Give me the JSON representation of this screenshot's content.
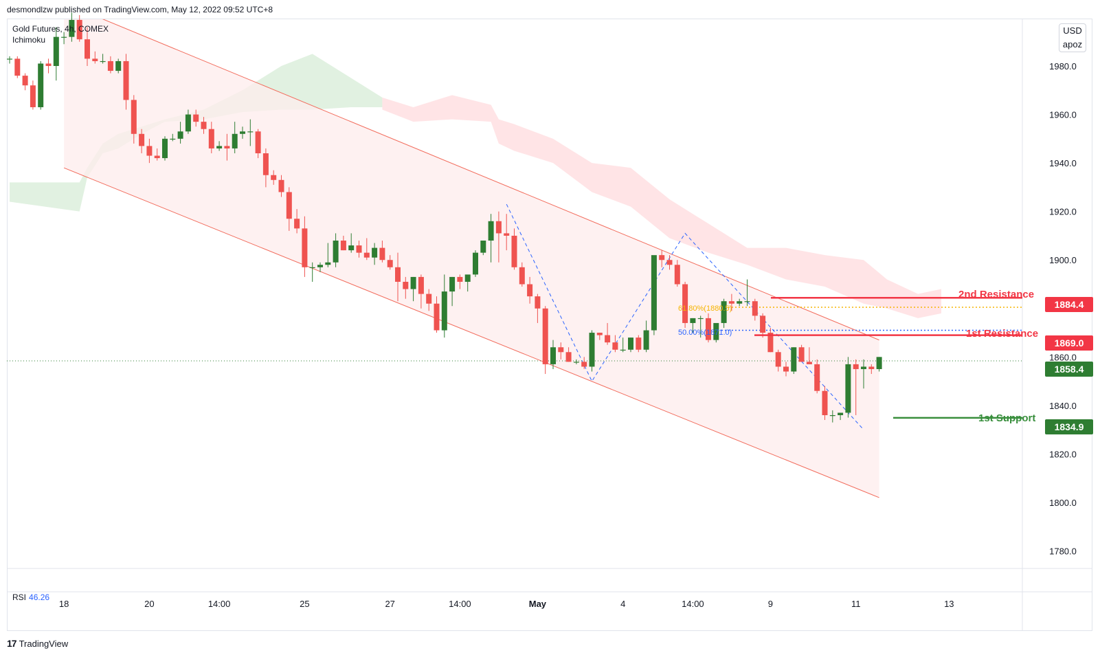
{
  "header": {
    "published_text": "desmondlzw published on TradingView.com, May 12, 2022 09:52 UTC+8"
  },
  "legend": {
    "symbol": "Gold Futures, 4h, COMEX",
    "indicator": "Ichimoku"
  },
  "scale": {
    "currency": "USD",
    "mode": "apoz"
  },
  "rsi": {
    "label": "RSI",
    "value": "46.26"
  },
  "footer": {
    "brand": "TradingView",
    "mark": "17"
  },
  "price_tags": {
    "second_resistance": "1884.4",
    "first_resistance": "1869.0",
    "current": "1858.4",
    "first_support": "1834.9"
  },
  "annotations": {
    "second_resistance": "2nd Resistance",
    "first_resistance": "1st Resistance",
    "first_support": "1st Support",
    "fib_618": "61.80%(1880.5)",
    "fib_50": "50.00%(1871.0)"
  },
  "colors": {
    "up": "#2e7d32",
    "down": "#ef5350",
    "resistance": "#f23645",
    "support": "#388e3c",
    "current": "#2e7d32",
    "fib618": "#f5b400",
    "fib50": "#2962ff",
    "channel": "#f26b5b",
    "cloud_bull": "#c8e6c9",
    "cloud_bear": "#ffcdd2"
  },
  "chart_data": {
    "type": "candlestick",
    "ylim": [
      1775,
      1995
    ],
    "y_ticks": [
      1780,
      1800,
      1820,
      1840,
      1860,
      1880,
      1900,
      1920,
      1940,
      1960,
      1980
    ],
    "x_ticks": [
      {
        "label": "18",
        "bar": 7
      },
      {
        "label": "20",
        "bar": 18
      },
      {
        "label": "14:00",
        "bar": 27
      },
      {
        "label": "25",
        "bar": 38
      },
      {
        "label": "27",
        "bar": 49
      },
      {
        "label": "14:00",
        "bar": 58
      },
      {
        "label": "May",
        "bar": 68,
        "bold": true
      },
      {
        "label": "4",
        "bar": 79
      },
      {
        "label": "14:00",
        "bar": 88
      },
      {
        "label": "9",
        "bar": 98
      },
      {
        "label": "11",
        "bar": 109
      },
      {
        "label": "13",
        "bar": 121
      }
    ],
    "candles": [
      [
        1983,
        1984,
        1981,
        1983
      ],
      [
        1983,
        1984,
        1975,
        1976
      ],
      [
        1976,
        1977,
        1970,
        1972
      ],
      [
        1972,
        1974,
        1962,
        1963
      ],
      [
        1963,
        1982,
        1962,
        1981
      ],
      [
        1981,
        1983,
        1977,
        1980
      ],
      [
        1980,
        1996,
        1974,
        1992
      ],
      [
        1992,
        1994,
        1989,
        1992
      ],
      [
        1992,
        2002,
        1990,
        1999
      ],
      [
        1999,
        2001,
        1990,
        1991
      ],
      [
        1991,
        1996,
        1980,
        1983
      ],
      [
        1983,
        1986,
        1981,
        1982
      ],
      [
        1982,
        1985,
        1981,
        1982
      ],
      [
        1982,
        1984,
        1977,
        1978
      ],
      [
        1978,
        1983,
        1977,
        1982
      ],
      [
        1982,
        1985,
        1962,
        1966
      ],
      [
        1966,
        1968,
        1948,
        1952
      ],
      [
        1952,
        1954,
        1944,
        1947
      ],
      [
        1947,
        1950,
        1940,
        1943
      ],
      [
        1943,
        1946,
        1941,
        1942
      ],
      [
        1942,
        1951,
        1941,
        1950
      ],
      [
        1950,
        1952,
        1949,
        1950
      ],
      [
        1950,
        1957,
        1948,
        1953
      ],
      [
        1953,
        1962,
        1952,
        1960
      ],
      [
        1960,
        1962,
        1955,
        1957
      ],
      [
        1957,
        1959,
        1952,
        1954
      ],
      [
        1954,
        1957,
        1944,
        1946
      ],
      [
        1946,
        1949,
        1945,
        1947
      ],
      [
        1947,
        1952,
        1941,
        1946
      ],
      [
        1946,
        1957,
        1944,
        1952
      ],
      [
        1952,
        1955,
        1950,
        1953
      ],
      [
        1953,
        1958,
        1947,
        1953
      ],
      [
        1953,
        1954,
        1942,
        1944
      ],
      [
        1944,
        1946,
        1930,
        1935
      ],
      [
        1935,
        1937,
        1931,
        1933
      ],
      [
        1933,
        1935,
        1926,
        1928
      ],
      [
        1928,
        1930,
        1912,
        1917
      ],
      [
        1917,
        1921,
        1911,
        1913
      ],
      [
        1913,
        1918,
        1893,
        1897
      ],
      [
        1897,
        1899,
        1891,
        1897
      ],
      [
        1897,
        1899,
        1895,
        1898
      ],
      [
        1898,
        1907,
        1897,
        1899
      ],
      [
        1899,
        1911,
        1897,
        1908
      ],
      [
        1908,
        1910,
        1904,
        1904
      ],
      [
        1904,
        1911,
        1903,
        1906
      ],
      [
        1906,
        1908,
        1901,
        1903
      ],
      [
        1903,
        1909,
        1900,
        1901
      ],
      [
        1901,
        1907,
        1898,
        1905
      ],
      [
        1905,
        1908,
        1899,
        1900
      ],
      [
        1900,
        1902,
        1896,
        1897
      ],
      [
        1897,
        1903,
        1883,
        1891
      ],
      [
        1891,
        1893,
        1884,
        1888
      ],
      [
        1888,
        1893,
        1883,
        1893
      ],
      [
        1893,
        1894,
        1880,
        1886
      ],
      [
        1886,
        1888,
        1879,
        1882
      ],
      [
        1882,
        1885,
        1870,
        1871
      ],
      [
        1871,
        1894,
        1868,
        1887
      ],
      [
        1887,
        1893,
        1881,
        1893
      ],
      [
        1893,
        1894,
        1888,
        1891
      ],
      [
        1891,
        1893,
        1887,
        1894
      ],
      [
        1894,
        1904,
        1893,
        1903
      ],
      [
        1903,
        1908,
        1902,
        1908
      ],
      [
        1908,
        1919,
        1899,
        1916
      ],
      [
        1916,
        1920,
        1899,
        1911
      ],
      [
        1911,
        1919,
        1904,
        1910
      ],
      [
        1910,
        1913,
        1896,
        1897
      ],
      [
        1897,
        1899,
        1889,
        1890
      ],
      [
        1890,
        1893,
        1882,
        1885
      ],
      [
        1885,
        1886,
        1874,
        1880
      ],
      [
        1880,
        1881,
        1853,
        1857
      ],
      [
        1857,
        1867,
        1855,
        1864
      ],
      [
        1864,
        1866,
        1859,
        1862
      ],
      [
        1862,
        1864,
        1858,
        1858
      ],
      [
        1858,
        1859,
        1857,
        1858
      ],
      [
        1858,
        1860,
        1855,
        1856
      ],
      [
        1856,
        1871,
        1854,
        1870
      ],
      [
        1870,
        1870,
        1867,
        1869
      ],
      [
        1869,
        1874,
        1865,
        1866
      ],
      [
        1866,
        1869,
        1862,
        1863
      ],
      [
        1863,
        1868,
        1862,
        1863
      ],
      [
        1863,
        1868,
        1862,
        1868
      ],
      [
        1868,
        1869,
        1862,
        1863
      ],
      [
        1863,
        1875,
        1862,
        1871
      ],
      [
        1871,
        1900,
        1869,
        1902
      ],
      [
        1902,
        1904,
        1897,
        1900
      ],
      [
        1900,
        1902,
        1896,
        1898
      ],
      [
        1898,
        1900,
        1889,
        1890
      ],
      [
        1890,
        1891,
        1872,
        1874
      ],
      [
        1874,
        1876,
        1870,
        1876
      ],
      [
        1876,
        1877,
        1868,
        1876
      ],
      [
        1876,
        1878,
        1866,
        1867
      ],
      [
        1867,
        1873,
        1866,
        1874
      ],
      [
        1874,
        1884,
        1872,
        1883
      ],
      [
        1883,
        1886,
        1879,
        1882
      ],
      [
        1882,
        1884,
        1881,
        1883
      ],
      [
        1883,
        1892,
        1881,
        1883
      ],
      [
        1883,
        1884,
        1875,
        1877
      ],
      [
        1877,
        1878,
        1868,
        1870
      ],
      [
        1870,
        1872,
        1862,
        1862
      ],
      [
        1862,
        1863,
        1854,
        1856
      ],
      [
        1856,
        1858,
        1852,
        1854
      ],
      [
        1854,
        1864,
        1853,
        1864
      ],
      [
        1864,
        1865,
        1859,
        1858
      ],
      [
        1858,
        1864,
        1857,
        1857
      ],
      [
        1857,
        1859,
        1845,
        1846
      ],
      [
        1846,
        1848,
        1834,
        1836
      ],
      [
        1836,
        1838,
        1833,
        1836
      ],
      [
        1836,
        1837,
        1834,
        1837
      ],
      [
        1837,
        1860,
        1835,
        1857
      ],
      [
        1857,
        1859,
        1836,
        1855
      ],
      [
        1855,
        1859,
        1847,
        1856
      ],
      [
        1856,
        1857,
        1853,
        1855
      ],
      [
        1855,
        1860,
        1854,
        1860
      ]
    ],
    "channel_upper": [
      {
        "bar": 10,
        "y": 2002
      },
      {
        "bar": 112,
        "y": 1867
      }
    ],
    "channel_lower": [
      {
        "bar": 7,
        "y": 1938
      },
      {
        "bar": 112,
        "y": 1802
      }
    ],
    "levels": [
      {
        "name": "2nd Resistance",
        "price": 1884.4
      },
      {
        "name": "1st Resistance",
        "price": 1869.0
      },
      {
        "name": "Current",
        "price": 1858.4
      },
      {
        "name": "1st Support",
        "price": 1834.9
      }
    ],
    "fib_levels": [
      {
        "label": "61.80%(1880.5)",
        "price": 1880.5
      },
      {
        "label": "50.00%(1871.0)",
        "price": 1871.0
      }
    ],
    "zigzag_1": [
      {
        "bar": 64,
        "y": 1923
      },
      {
        "bar": 75,
        "y": 1850
      },
      {
        "bar": 87,
        "y": 1911
      },
      {
        "bar": 110,
        "y": 1830
      }
    ],
    "cloud_bull": [
      [
        0,
        1932,
        1924
      ],
      [
        9,
        1932,
        1920
      ],
      [
        10,
        1934,
        1938
      ],
      [
        12,
        1944,
        1948
      ],
      [
        14,
        1946,
        1952
      ],
      [
        17,
        1952,
        1955
      ],
      [
        20,
        1958,
        1957
      ],
      [
        25,
        1962,
        1958
      ],
      [
        30,
        1970,
        1961
      ],
      [
        35,
        1980,
        1962
      ],
      [
        39,
        1985,
        1962
      ],
      [
        44,
        1975,
        1963
      ],
      [
        48,
        1967,
        1963
      ]
    ],
    "cloud_bear": [
      [
        48,
        1962,
        1967
      ],
      [
        52,
        1957,
        1963
      ],
      [
        57,
        1958,
        1968
      ],
      [
        62,
        1957,
        1964
      ],
      [
        63,
        1948,
        1958
      ],
      [
        65,
        1945,
        1956
      ],
      [
        70,
        1940,
        1950
      ],
      [
        75,
        1928,
        1940
      ],
      [
        80,
        1922,
        1938
      ],
      [
        85,
        1909,
        1925
      ],
      [
        90,
        1903,
        1915
      ],
      [
        95,
        1898,
        1905
      ],
      [
        100,
        1892,
        1905
      ],
      [
        105,
        1889,
        1902
      ],
      [
        110,
        1882,
        1900
      ],
      [
        113,
        1880,
        1892
      ],
      [
        117,
        1876,
        1886
      ],
      [
        120,
        1878,
        1888
      ]
    ]
  }
}
